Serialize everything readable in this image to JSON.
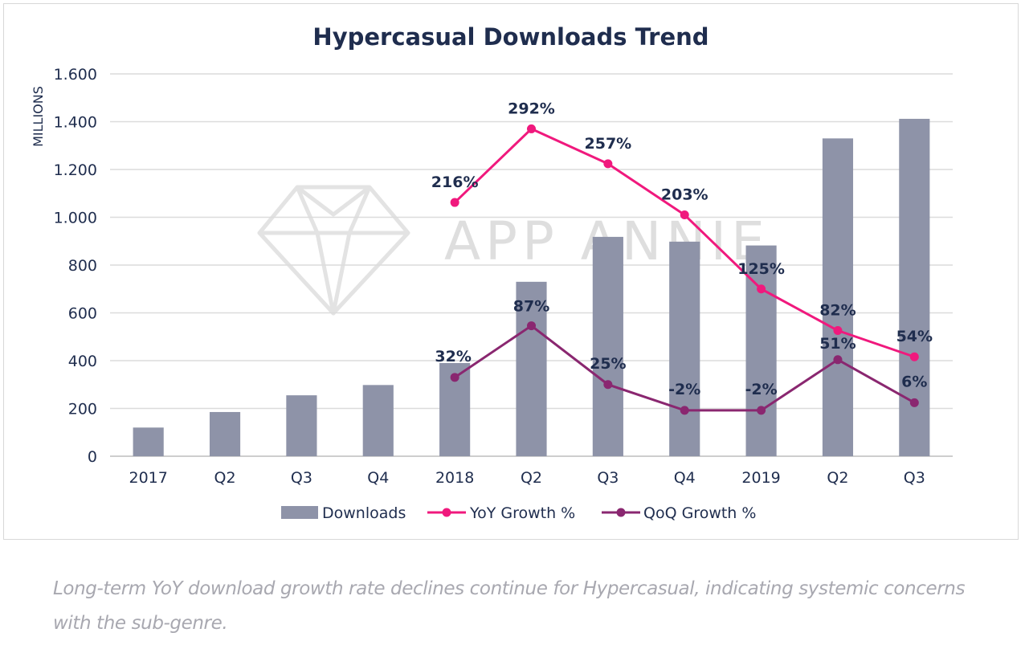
{
  "caption": "Long-term YoY download growth rate declines continue for Hypercasual, indicating systemic concerns with the sub-genre.",
  "watermark": {
    "text": "APP ANNIE",
    "icon": "diamond-logo-icon"
  },
  "chart_data": {
    "type": "bar",
    "title": "Hypercasual Downloads Trend",
    "xlabel": "",
    "ylabel": "MILLIONS",
    "ylim": [
      0,
      1600
    ],
    "yticks": [
      0,
      200,
      400,
      600,
      800,
      1000,
      1200,
      1400,
      1600
    ],
    "ytick_labels": [
      "0",
      "200",
      "400",
      "600",
      "800",
      "1.000",
      "1.200",
      "1.400",
      "1.600"
    ],
    "categories": [
      "2017",
      "Q2",
      "Q3",
      "Q4",
      "2018",
      "Q2",
      "Q3",
      "Q4",
      "2019",
      "Q2",
      "Q3"
    ],
    "grid": true,
    "legend_position": "bottom",
    "series": [
      {
        "name": "Downloads",
        "type": "bar",
        "color": "#8e93a8",
        "values": [
          120,
          185,
          255,
          298,
          390,
          730,
          918,
          898,
          882,
          1330,
          1412
        ]
      },
      {
        "name": "YoY Growth %",
        "type": "line",
        "color": "#f0197d",
        "values": [
          null,
          null,
          null,
          null,
          1062,
          1370,
          1224,
          1010,
          700,
          526,
          416
        ],
        "labels": [
          null,
          null,
          null,
          null,
          "216%",
          "292%",
          "257%",
          "203%",
          "125%",
          "82%",
          "54%"
        ]
      },
      {
        "name": "QoQ Growth %",
        "type": "line",
        "color": "#8a2770",
        "values": [
          null,
          null,
          null,
          null,
          330,
          546,
          300,
          192,
          192,
          404,
          224
        ],
        "labels": [
          null,
          null,
          null,
          null,
          "32%",
          "87%",
          "25%",
          "-2%",
          "-2%",
          "51%",
          "6%"
        ]
      }
    ]
  }
}
